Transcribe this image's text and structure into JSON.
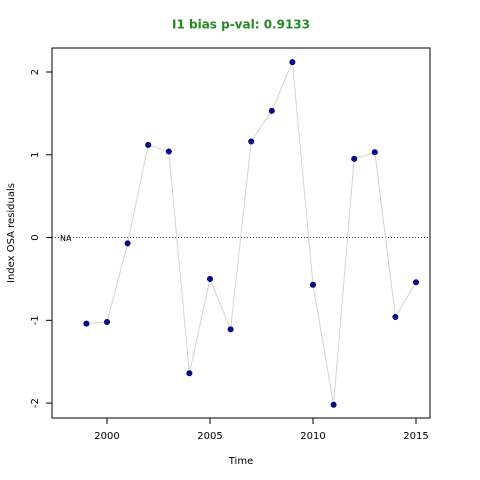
{
  "chart_data": {
    "type": "line",
    "title": "I1 bias p-val: 0.9133",
    "x_label": "Time",
    "y_label": "Index OSA residuals",
    "x": [
      1999,
      2000,
      2001,
      2002,
      2003,
      2004,
      2005,
      2006,
      2007,
      2008,
      2009,
      2010,
      2011,
      2012,
      2013,
      2014,
      2015
    ],
    "values": [
      -1.04,
      -1.02,
      -0.07,
      1.12,
      1.04,
      -1.64,
      -0.5,
      -1.11,
      1.16,
      1.53,
      2.12,
      -0.57,
      -2.02,
      0.95,
      1.03,
      -0.96,
      -0.54
    ],
    "line_color": "#d3d3d3",
    "marker_color": "#0000cd",
    "reference_line": 0,
    "annotation": "NA",
    "xlim": [
      1997.33,
      2015.68
    ],
    "xticks": [
      2000,
      2005,
      2010,
      2015
    ],
    "ylim": [
      -2.18,
      2.29
    ],
    "yticks": [
      -2,
      -1,
      0,
      1,
      2
    ]
  }
}
